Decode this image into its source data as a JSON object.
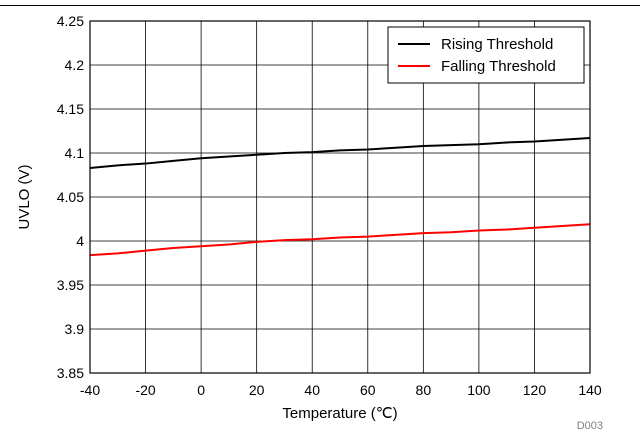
{
  "chart_data": {
    "type": "line",
    "title": "",
    "xlabel": "Temperature (℃)",
    "ylabel": "UVLO (V)",
    "xlim": [
      -40,
      140
    ],
    "ylim": [
      3.85,
      4.25
    ],
    "xticks": [
      -40,
      -20,
      0,
      20,
      40,
      60,
      80,
      100,
      120,
      140
    ],
    "yticks": [
      3.85,
      3.9,
      3.95,
      4,
      4.05,
      4.1,
      4.15,
      4.2,
      4.25
    ],
    "xtick_labels": [
      "-40",
      "-20",
      "0",
      "20",
      "40",
      "60",
      "80",
      "100",
      "120",
      "140"
    ],
    "ytick_labels": [
      "3.85",
      "3.9",
      "3.95",
      "4",
      "4.05",
      "4.1",
      "4.15",
      "4.2",
      "4.25"
    ],
    "grid": true,
    "legend_position": "top-right",
    "series": [
      {
        "name": "Rising Threshold",
        "color": "#000000",
        "x": [
          -40,
          -30,
          -20,
          -10,
          0,
          10,
          20,
          30,
          40,
          50,
          60,
          70,
          80,
          90,
          100,
          110,
          120,
          130,
          140
        ],
        "y": [
          4.083,
          4.086,
          4.088,
          4.091,
          4.094,
          4.096,
          4.098,
          4.1,
          4.101,
          4.103,
          4.104,
          4.106,
          4.108,
          4.109,
          4.11,
          4.112,
          4.113,
          4.115,
          4.117
        ]
      },
      {
        "name": "Falling Threshold",
        "color": "#ff0000",
        "x": [
          -40,
          -30,
          -20,
          -10,
          0,
          10,
          20,
          30,
          40,
          50,
          60,
          70,
          80,
          90,
          100,
          110,
          120,
          130,
          140
        ],
        "y": [
          3.984,
          3.986,
          3.989,
          3.992,
          3.994,
          3.996,
          3.999,
          4.001,
          4.002,
          4.004,
          4.005,
          4.007,
          4.009,
          4.01,
          4.012,
          4.013,
          4.015,
          4.017,
          4.019
        ]
      }
    ],
    "annotation": "D003"
  }
}
